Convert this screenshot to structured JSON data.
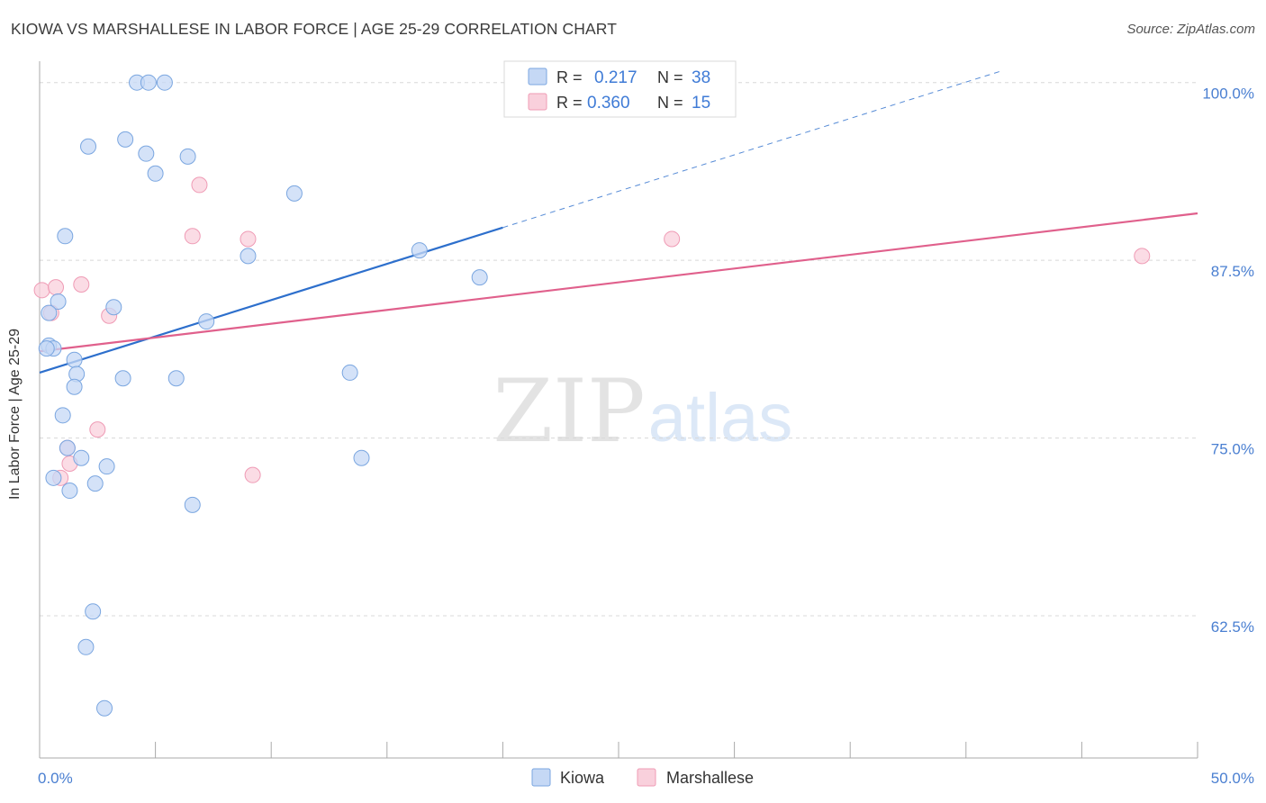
{
  "title": "KIOWA VS MARSHALLESE IN LABOR FORCE | AGE 25-29 CORRELATION CHART",
  "source": "Source: ZipAtlas.com",
  "watermark": {
    "zip": "ZIP",
    "atlas": "atlas"
  },
  "colors": {
    "kiowa_fill": "#c5d8f5",
    "kiowa_stroke": "#7aa6e0",
    "kiowa_line": "#2d6fcc",
    "marsh_fill": "#f9d0dc",
    "marsh_stroke": "#ef9bb5",
    "marsh_line": "#e0608c",
    "axis_text": "#4a7fd1",
    "grid": "#d8d8d8"
  },
  "legend": {
    "rows": [
      {
        "r_label": "R =",
        "r_value": "0.217",
        "n_label": "N =",
        "n_value": "38"
      },
      {
        "r_label": "R =",
        "r_value": "0.360",
        "n_label": "N =",
        "n_value": "15"
      }
    ]
  },
  "chart_data": {
    "type": "scatter",
    "xlabel": "",
    "ylabel": "In Labor Force | Age 25-29",
    "xlim": [
      0,
      50
    ],
    "ylim": [
      52.5,
      101.5
    ],
    "x_tick_labels": [
      {
        "value": 0,
        "label": "0.0%"
      },
      {
        "value": 50,
        "label": "50.0%"
      }
    ],
    "y_tick_labels": [
      {
        "value": 100,
        "label": "100.0%"
      },
      {
        "value": 87.5,
        "label": "87.5%"
      },
      {
        "value": 75,
        "label": "75.0%"
      },
      {
        "value": 62.5,
        "label": "62.5%"
      }
    ],
    "x_minor_ticks": [
      0,
      5,
      10,
      15,
      20,
      25,
      30,
      35,
      40,
      45,
      50
    ],
    "series": [
      {
        "name": "Kiowa",
        "r": 0.217,
        "n": 38,
        "points": [
          [
            4.2,
            100.0
          ],
          [
            4.7,
            100.0
          ],
          [
            5.4,
            100.0
          ],
          [
            3.7,
            96.0
          ],
          [
            2.1,
            95.5
          ],
          [
            4.6,
            95.0
          ],
          [
            6.4,
            94.8
          ],
          [
            5.0,
            93.6
          ],
          [
            11.0,
            92.2
          ],
          [
            1.1,
            89.2
          ],
          [
            9.0,
            87.8
          ],
          [
            16.4,
            88.2
          ],
          [
            19.0,
            86.3
          ],
          [
            0.8,
            84.6
          ],
          [
            3.2,
            84.2
          ],
          [
            0.4,
            83.8
          ],
          [
            7.2,
            83.2
          ],
          [
            0.4,
            81.5
          ],
          [
            0.6,
            81.3
          ],
          [
            0.3,
            81.3
          ],
          [
            1.5,
            80.5
          ],
          [
            1.6,
            79.5
          ],
          [
            3.6,
            79.2
          ],
          [
            5.9,
            79.2
          ],
          [
            13.4,
            79.6
          ],
          [
            1.5,
            78.6
          ],
          [
            1.0,
            76.6
          ],
          [
            1.2,
            74.3
          ],
          [
            1.8,
            73.6
          ],
          [
            2.9,
            73.0
          ],
          [
            13.9,
            73.6
          ],
          [
            0.6,
            72.2
          ],
          [
            2.4,
            71.8
          ],
          [
            1.3,
            71.3
          ],
          [
            6.6,
            70.3
          ],
          [
            2.3,
            62.8
          ],
          [
            2.0,
            60.3
          ],
          [
            2.8,
            56.0
          ]
        ],
        "trend": {
          "x_start": 0,
          "y_start": 79.6,
          "x_solid_end": 20,
          "y_solid_end": 89.8,
          "x_dash_end": 41.5,
          "y_dash_end": 100.8
        }
      },
      {
        "name": "Marshallese",
        "r": 0.36,
        "n": 15,
        "points": [
          [
            6.9,
            92.8
          ],
          [
            6.6,
            89.2
          ],
          [
            9.0,
            89.0
          ],
          [
            27.3,
            89.0
          ],
          [
            47.6,
            87.8
          ],
          [
            0.1,
            85.4
          ],
          [
            0.7,
            85.6
          ],
          [
            1.8,
            85.8
          ],
          [
            0.5,
            83.8
          ],
          [
            3.0,
            83.6
          ],
          [
            2.5,
            75.6
          ],
          [
            1.2,
            74.3
          ],
          [
            1.3,
            73.2
          ],
          [
            9.2,
            72.4
          ],
          [
            0.9,
            72.2
          ]
        ],
        "trend": {
          "x_start": 0,
          "y_start": 81.1,
          "x_end": 50,
          "y_end": 90.8
        }
      }
    ]
  }
}
